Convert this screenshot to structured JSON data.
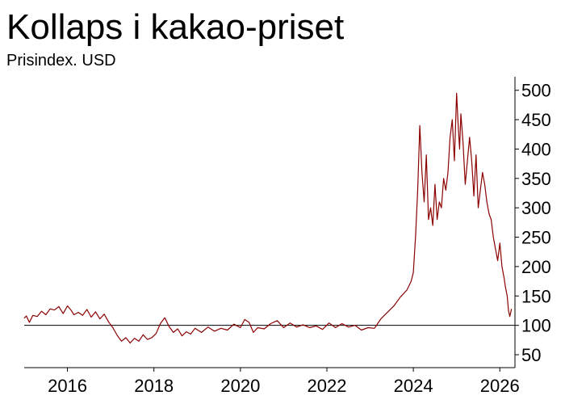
{
  "header": {
    "title": "Kollaps i kakao-priset",
    "subtitle": "Prisindex. USD"
  },
  "chart_data": {
    "type": "line",
    "title": "Kollaps i kakao-priset",
    "subtitle": "Prisindex. USD",
    "xlabel": "",
    "ylabel": "",
    "xlim": [
      2015.0,
      2026.35
    ],
    "ylim": [
      28,
      523
    ],
    "x_ticks": [
      "2016",
      "2018",
      "2020",
      "2022",
      "2024",
      "2026"
    ],
    "y_ticks": [
      "50",
      "100",
      "150",
      "200",
      "250",
      "300",
      "350",
      "400",
      "450",
      "500"
    ],
    "reference_line": 100,
    "colors": {
      "series": "#8b0000",
      "reference": "#000000"
    },
    "series": [
      {
        "x": [
          2015.0,
          2015.05,
          2015.12,
          2015.2,
          2015.3,
          2015.4,
          2015.5,
          2015.6,
          2015.7,
          2015.8,
          2015.9,
          2016.0,
          2016.08,
          2016.15,
          2016.25,
          2016.35,
          2016.45,
          2016.55,
          2016.65,
          2016.75,
          2016.85,
          2016.95,
          2017.05,
          2017.15,
          2017.25,
          2017.35,
          2017.45,
          2017.55,
          2017.65,
          2017.75,
          2017.85,
          2017.95,
          2018.05,
          2018.15,
          2018.25,
          2018.35,
          2018.45,
          2018.55,
          2018.65,
          2018.75,
          2018.85,
          2018.95,
          2019.1,
          2019.25,
          2019.4,
          2019.55,
          2019.7,
          2019.85,
          2020.0,
          2020.1,
          2020.2,
          2020.3,
          2020.4,
          2020.55,
          2020.7,
          2020.85,
          2021.0,
          2021.15,
          2021.3,
          2021.45,
          2021.6,
          2021.75,
          2021.9,
          2022.05,
          2022.2,
          2022.35,
          2022.5,
          2022.65,
          2022.8,
          2022.95,
          2023.1,
          2023.25,
          2023.4,
          2023.55,
          2023.7,
          2023.85,
          2023.95,
          2024.0,
          2024.05,
          2024.1,
          2024.15,
          2024.2,
          2024.25,
          2024.3,
          2024.35,
          2024.4,
          2024.45,
          2024.5,
          2024.55,
          2024.6,
          2024.65,
          2024.7,
          2024.75,
          2024.8,
          2024.85,
          2024.9,
          2024.95,
          2025.0,
          2025.03,
          2025.07,
          2025.1,
          2025.15,
          2025.2,
          2025.25,
          2025.3,
          2025.35,
          2025.4,
          2025.45,
          2025.5,
          2025.55,
          2025.6,
          2025.65,
          2025.7,
          2025.75,
          2025.8,
          2025.85,
          2025.9,
          2025.95,
          2026.0,
          2026.05,
          2026.1,
          2026.13,
          2026.17,
          2026.2,
          2026.23,
          2026.27
        ],
        "y": [
          112,
          116,
          105,
          117,
          115,
          124,
          118,
          128,
          126,
          132,
          120,
          133,
          126,
          118,
          122,
          117,
          127,
          114,
          123,
          111,
          119,
          106,
          96,
          83,
          73,
          79,
          70,
          78,
          73,
          84,
          76,
          79,
          86,
          103,
          113,
          98,
          88,
          94,
          82,
          89,
          85,
          95,
          88,
          97,
          90,
          95,
          92,
          102,
          96,
          110,
          105,
          88,
          96,
          94,
          103,
          108,
          96,
          104,
          97,
          101,
          96,
          99,
          93,
          104,
          96,
          103,
          97,
          100,
          92,
          96,
          95,
          111,
          122,
          133,
          148,
          160,
          175,
          190,
          250,
          330,
          440,
          360,
          310,
          390,
          280,
          300,
          270,
          340,
          280,
          310,
          300,
          350,
          330,
          360,
          420,
          450,
          380,
          495,
          450,
          400,
          460,
          410,
          340,
          380,
          420,
          380,
          320,
          390,
          300,
          330,
          360,
          340,
          310,
          290,
          280,
          250,
          230,
          210,
          240,
          200,
          180,
          165,
          150,
          125,
          115,
          128
        ]
      }
    ]
  }
}
